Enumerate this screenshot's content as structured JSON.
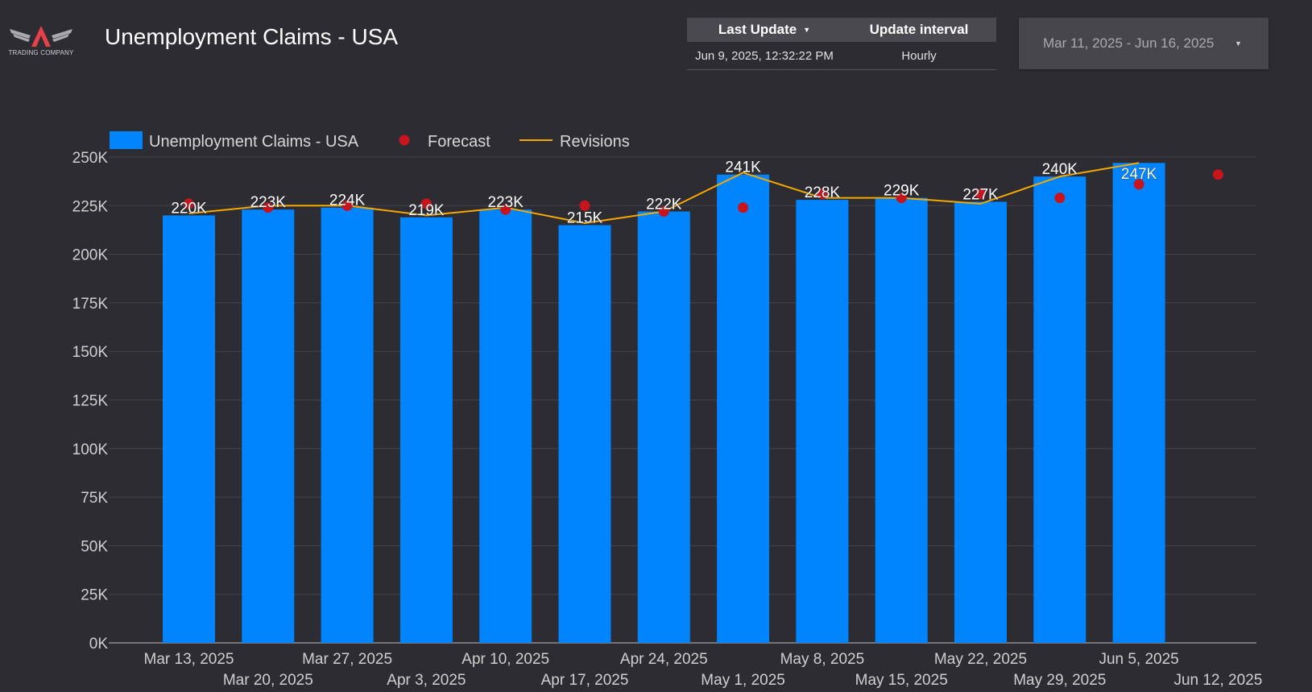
{
  "brand": {
    "logo_text": "TRADING COMPANY",
    "logo_icon": "winged-a-logo",
    "accent": "#e8404a"
  },
  "page": {
    "title": "Unemployment Claims - USA"
  },
  "info_table": {
    "headers": {
      "last_update": "Last Update",
      "update_interval": "Update interval"
    },
    "row": {
      "last_update": "Jun 9, 2025, 12:32:22 PM",
      "update_interval": "Hourly"
    },
    "sort_icon": "caret-down-icon"
  },
  "date_range": {
    "value": "Mar 11, 2025 - Jun 16, 2025",
    "dropdown_icon": "caret-down-icon"
  },
  "colors": {
    "background": "#2d2c33",
    "bar": "#0085ff",
    "forecast": "#c8141c",
    "revisions": "#f5a800",
    "grid": "#45444b"
  },
  "chart_data": {
    "type": "bar",
    "categories": [
      "Mar 13, 2025",
      "Mar 20, 2025",
      "Mar 27, 2025",
      "Apr 3, 2025",
      "Apr 10, 2025",
      "Apr 17, 2025",
      "Apr 24, 2025",
      "May 1, 2025",
      "May 8, 2025",
      "May 15, 2025",
      "May 22, 2025",
      "May 29, 2025",
      "Jun 5, 2025",
      "Jun 12, 2025"
    ],
    "ylim": [
      0,
      250000
    ],
    "y_ticks": [
      "0K",
      "25K",
      "50K",
      "75K",
      "100K",
      "125K",
      "150K",
      "175K",
      "200K",
      "225K",
      "250K"
    ],
    "grid": true,
    "legend_position": "top-left",
    "series": [
      {
        "name": "Unemployment Claims - USA",
        "type": "bar",
        "values": [
          220000,
          223000,
          224000,
          219000,
          223000,
          215000,
          222000,
          241000,
          228000,
          229000,
          227000,
          240000,
          247000,
          null
        ],
        "labels": [
          "220K",
          "223K",
          "224K",
          "219K",
          "223K",
          "215K",
          "222K",
          "241K",
          "228K",
          "229K",
          "227K",
          "240K",
          "247K",
          ""
        ]
      },
      {
        "name": "Forecast",
        "type": "scatter",
        "values": [
          226000,
          224000,
          225000,
          226000,
          223000,
          225000,
          222000,
          224000,
          231000,
          229000,
          231000,
          229000,
          236000,
          241000
        ]
      },
      {
        "name": "Revisions",
        "type": "line",
        "values": [
          221000,
          225000,
          225000,
          220000,
          224000,
          216000,
          222000,
          242000,
          229000,
          229000,
          226000,
          240000,
          247000,
          null
        ]
      }
    ]
  }
}
